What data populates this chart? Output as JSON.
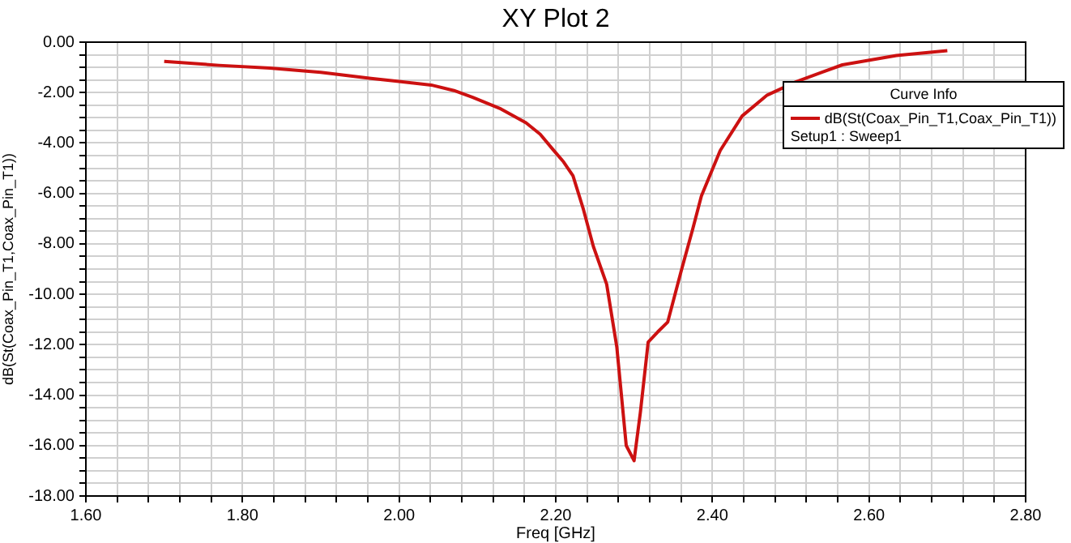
{
  "chart_data": {
    "type": "line",
    "title": "XY Plot 2",
    "xlabel": "Freq [GHz]",
    "ylabel": "dB(St(Coax_Pin_T1,Coax_Pin_T1))",
    "legend_title": "Curve Info",
    "legend": "top right",
    "grid": true,
    "marker": "none",
    "line_style": "solid",
    "annotations": [
      "Setup1 : Sweep1"
    ],
    "xlim": [
      1.6,
      2.8
    ],
    "xticks": [
      {
        "value": 1.6,
        "label": "1.60"
      },
      {
        "value": 1.64,
        "label": null
      },
      {
        "value": 1.68,
        "label": null
      },
      {
        "value": 1.72,
        "label": null
      },
      {
        "value": 1.76,
        "label": null
      },
      {
        "value": 1.8,
        "label": "1.80"
      },
      {
        "value": 1.84,
        "label": null
      },
      {
        "value": 1.88,
        "label": null
      },
      {
        "value": 1.92,
        "label": null
      },
      {
        "value": 1.96,
        "label": null
      },
      {
        "value": 2.0,
        "label": "2.00"
      },
      {
        "value": 2.04,
        "label": null
      },
      {
        "value": 2.08,
        "label": null
      },
      {
        "value": 2.12,
        "label": null
      },
      {
        "value": 2.16,
        "label": null
      },
      {
        "value": 2.2,
        "label": "2.20"
      },
      {
        "value": 2.24,
        "label": null
      },
      {
        "value": 2.28,
        "label": null
      },
      {
        "value": 2.32,
        "label": null
      },
      {
        "value": 2.36,
        "label": null
      },
      {
        "value": 2.4,
        "label": "2.40"
      },
      {
        "value": 2.44,
        "label": null
      },
      {
        "value": 2.48,
        "label": null
      },
      {
        "value": 2.52,
        "label": null
      },
      {
        "value": 2.56,
        "label": null
      },
      {
        "value": 2.6,
        "label": "2.60"
      },
      {
        "value": 2.64,
        "label": null
      },
      {
        "value": 2.68,
        "label": null
      },
      {
        "value": 2.72,
        "label": null
      },
      {
        "value": 2.76,
        "label": null
      },
      {
        "value": 2.8,
        "label": "2.80"
      }
    ],
    "ylim": [
      -18,
      0
    ],
    "yticks": [
      {
        "value": 0,
        "label": "0.00"
      },
      {
        "value": -0.5,
        "label": null
      },
      {
        "value": -1,
        "label": null
      },
      {
        "value": -1.5,
        "label": null
      },
      {
        "value": -2,
        "label": "-2.00"
      },
      {
        "value": -2.5,
        "label": null
      },
      {
        "value": -3,
        "label": null
      },
      {
        "value": -3.5,
        "label": null
      },
      {
        "value": -4,
        "label": "-4.00"
      },
      {
        "value": -4.5,
        "label": null
      },
      {
        "value": -5,
        "label": null
      },
      {
        "value": -5.5,
        "label": null
      },
      {
        "value": -6,
        "label": "-6.00"
      },
      {
        "value": -6.5,
        "label": null
      },
      {
        "value": -7,
        "label": null
      },
      {
        "value": -7.5,
        "label": null
      },
      {
        "value": -8,
        "label": "-8.00"
      },
      {
        "value": -8.5,
        "label": null
      },
      {
        "value": -9,
        "label": null
      },
      {
        "value": -9.5,
        "label": null
      },
      {
        "value": -10,
        "label": "-10.00"
      },
      {
        "value": -10.5,
        "label": null
      },
      {
        "value": -11,
        "label": null
      },
      {
        "value": -11.5,
        "label": null
      },
      {
        "value": -12,
        "label": "-12.00"
      },
      {
        "value": -12.5,
        "label": null
      },
      {
        "value": -13,
        "label": null
      },
      {
        "value": -13.5,
        "label": null
      },
      {
        "value": -14,
        "label": "-14.00"
      },
      {
        "value": -14.5,
        "label": null
      },
      {
        "value": -15,
        "label": null
      },
      {
        "value": -15.5,
        "label": null
      },
      {
        "value": -16,
        "label": "-16.00"
      },
      {
        "value": -16.5,
        "label": null
      },
      {
        "value": -17,
        "label": null
      },
      {
        "value": -17.5,
        "label": null
      },
      {
        "value": -18,
        "label": "-18.00"
      }
    ],
    "series": [
      {
        "name": "dB(St(Coax_Pin_T1,Coax_Pin_T1))",
        "color": "#cc1111",
        "x": [
          1.7,
          1.77,
          1.835,
          1.9,
          1.964,
          2.0,
          2.041,
          2.07,
          2.094,
          2.13,
          2.162,
          2.18,
          2.197,
          2.21,
          2.222,
          2.235,
          2.248,
          2.265,
          2.278,
          2.29,
          2.3,
          2.308,
          2.318,
          2.33,
          2.343,
          2.36,
          2.375,
          2.386,
          2.41,
          2.438,
          2.47,
          2.507,
          2.566,
          2.635,
          2.7
        ],
        "values": [
          -0.76,
          -0.92,
          -1.03,
          -1.2,
          -1.44,
          -1.56,
          -1.7,
          -1.92,
          -2.19,
          -2.65,
          -3.2,
          -3.65,
          -4.28,
          -4.75,
          -5.3,
          -6.6,
          -8.1,
          -9.6,
          -12.1,
          -16.0,
          -16.6,
          -14.7,
          -11.9,
          -11.5,
          -11.1,
          -9.1,
          -7.4,
          -6.1,
          -4.3,
          -2.93,
          -2.1,
          -1.57,
          -0.9,
          -0.53,
          -0.34
        ]
      }
    ]
  }
}
